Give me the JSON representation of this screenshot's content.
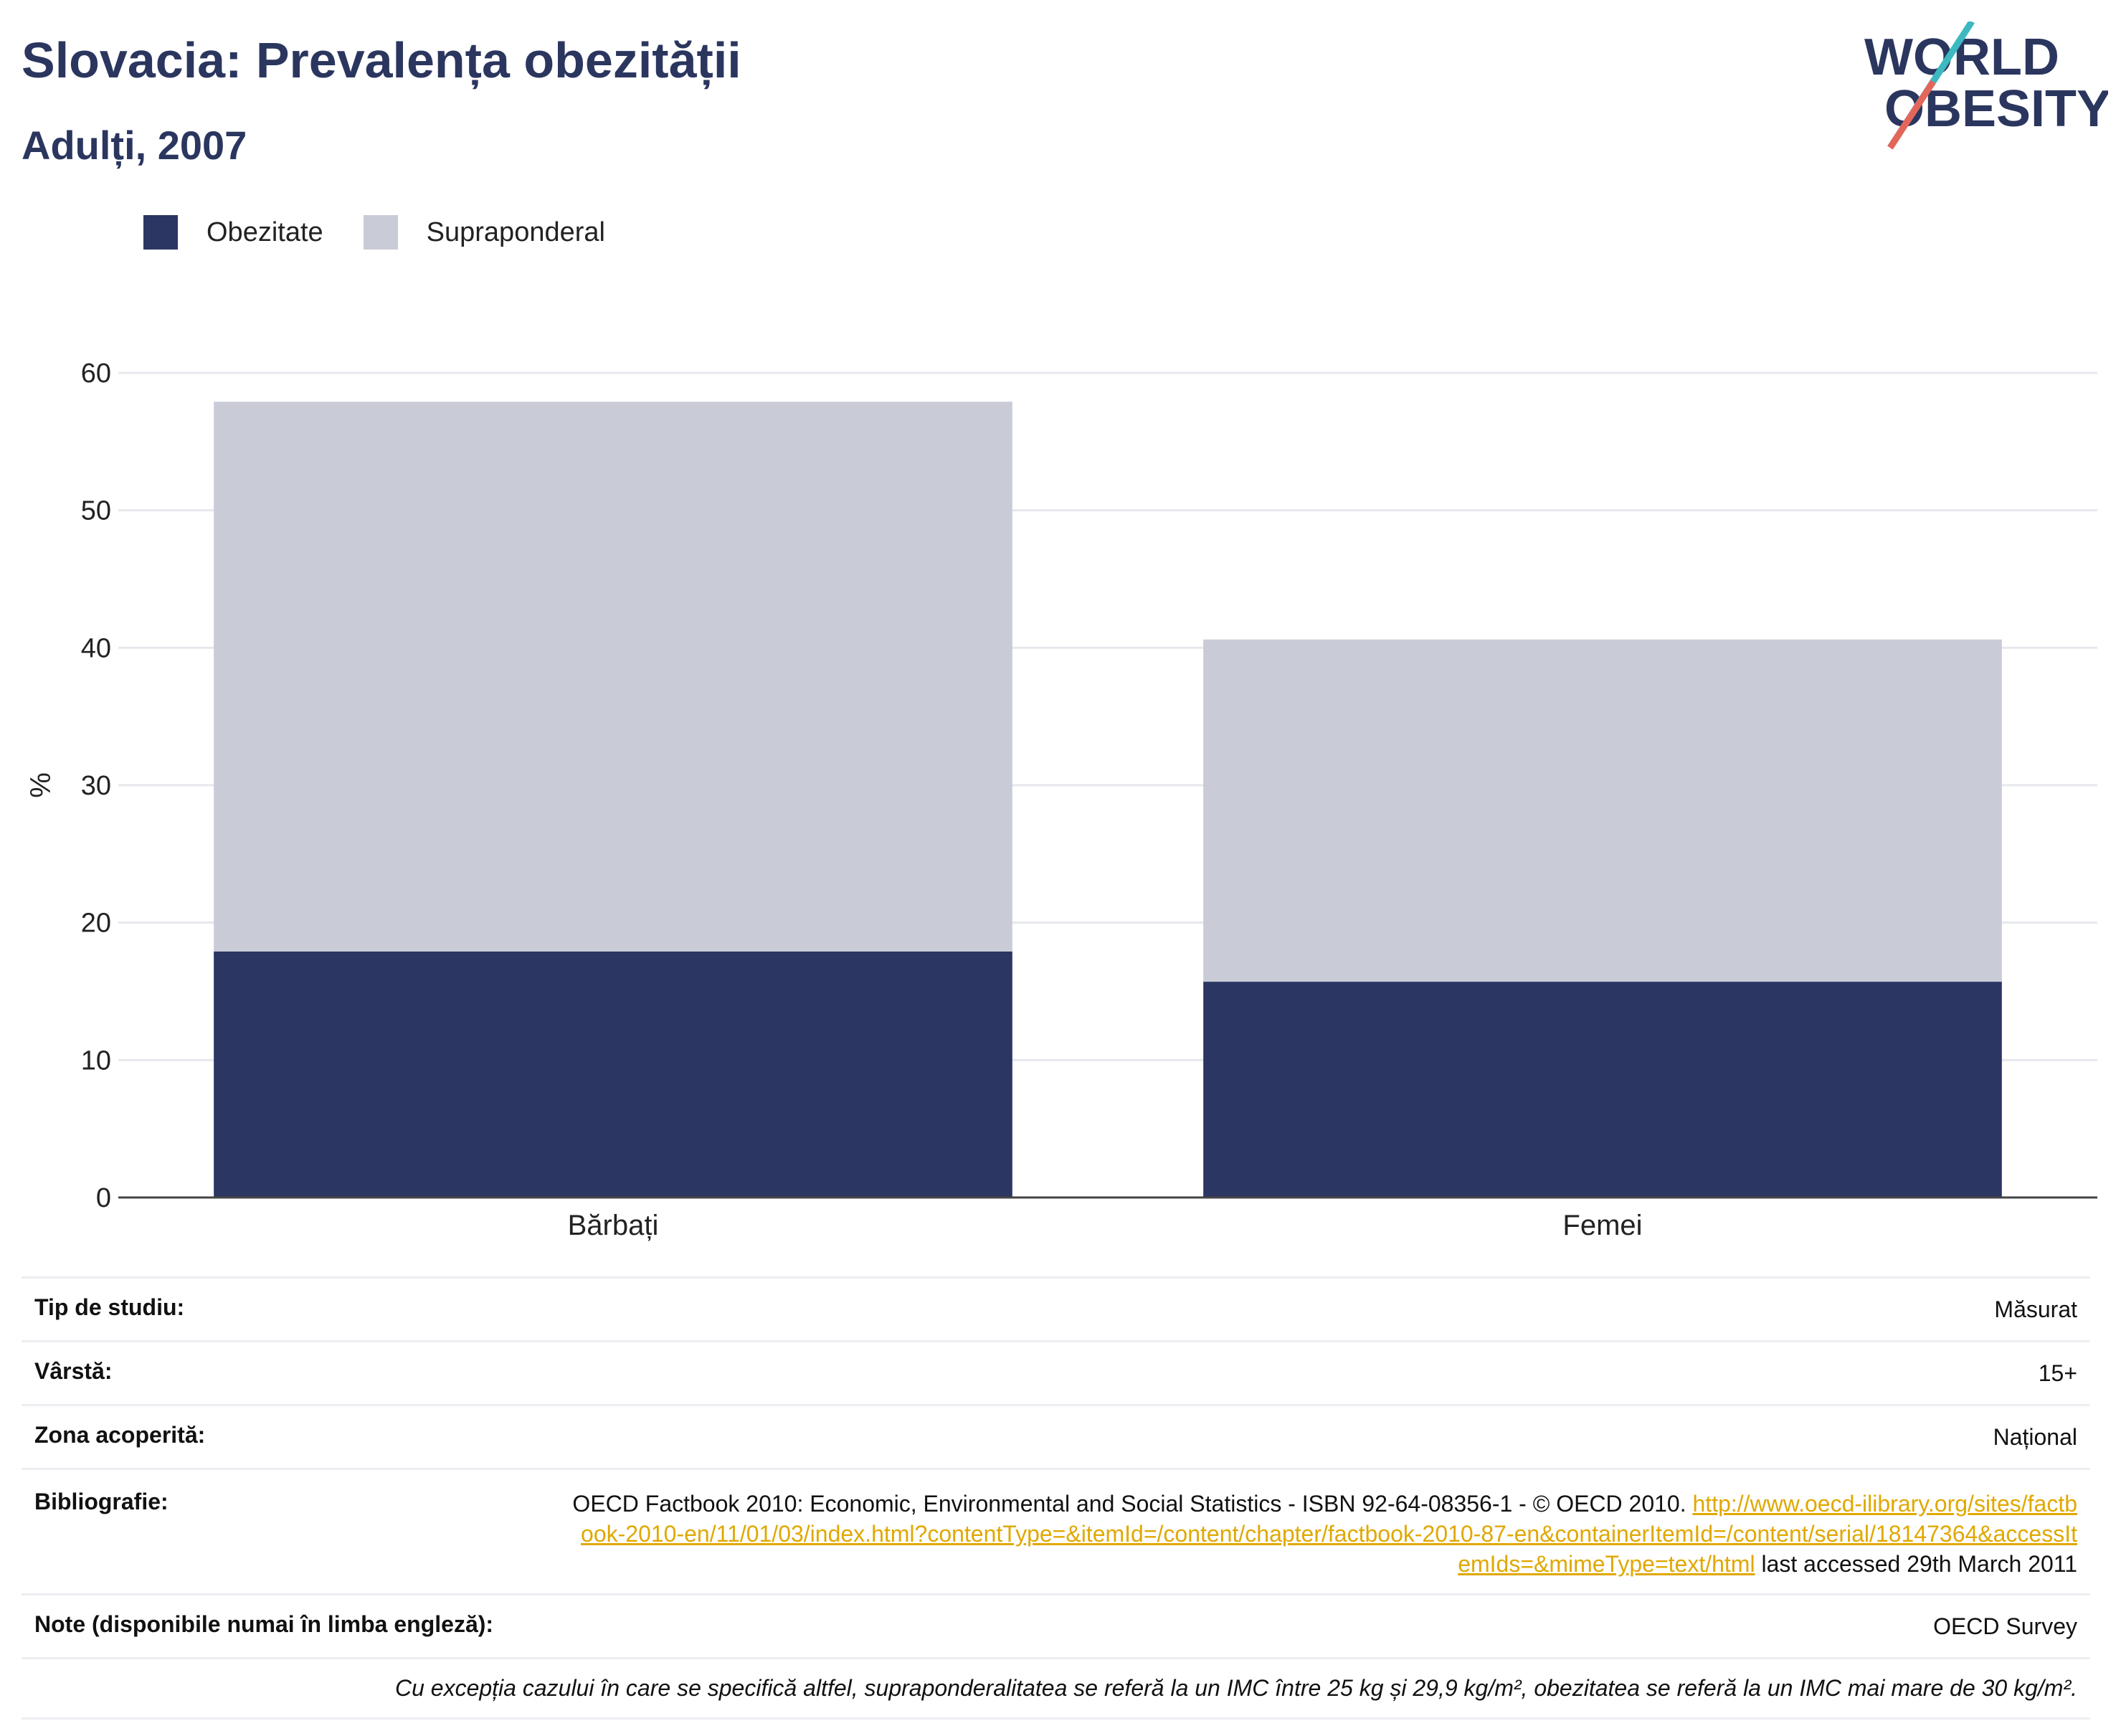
{
  "header": {
    "title": "Slovacia: Prevalența obezității",
    "subtitle": "Adulți, 2007",
    "logo_line1": "WORLD",
    "logo_line2": "OBESITY"
  },
  "legend": {
    "items": [
      {
        "label": "Obezitate",
        "color": "#2b3663"
      },
      {
        "label": "Supraponderal",
        "color": "#c9ccd7"
      }
    ]
  },
  "chart_data": {
    "type": "bar",
    "stacked": true,
    "categories": [
      "Bărbați",
      "Femei"
    ],
    "series": [
      {
        "name": "Obezitate",
        "values": [
          17.9,
          15.7
        ],
        "color": "#2b3663"
      },
      {
        "name": "Supraponderal",
        "values": [
          40.0,
          24.9
        ],
        "color": "#c9ccd7"
      }
    ],
    "ylabel": "%",
    "ylim": [
      0,
      60
    ],
    "yticks": [
      "0",
      "10",
      "20",
      "30",
      "40",
      "50",
      "60"
    ],
    "grid": true,
    "legend_position": "top-left"
  },
  "info": {
    "study_type_label": "Tip de studiu:",
    "study_type_value": "Măsurat",
    "age_label": "Vârstă:",
    "age_value": "15+",
    "area_label": "Zona acoperită:",
    "area_value": "Național",
    "bib_label": "Bibliografie:",
    "bib_text": "OECD Factbook 2010: Economic, Environmental and Social Statistics - ISBN 92-64-08356-1 - © OECD 2010.",
    "bib_link": "http://www.oecd-ilibrary.org/sites/factbook-2010-en/11/01/03/index.html?contentType=&itemId=/content/chapter/factbook-2010-87-en&containerItemId=/content/serial/18147364&accessItemIds=&mimeType=text/html",
    "bib_suffix": "last accessed 29th March 2011",
    "notes_label": "Note (disponibile numai în limba engleză):",
    "notes_value": "OECD Survey",
    "footnote": "Cu excepția cazului în care se specifică altfel, supraponderalitatea se referă la un IMC între 25 kg și 29,9 kg/m², obezitatea se referă la un IMC mai mare de 30 kg/m²."
  }
}
